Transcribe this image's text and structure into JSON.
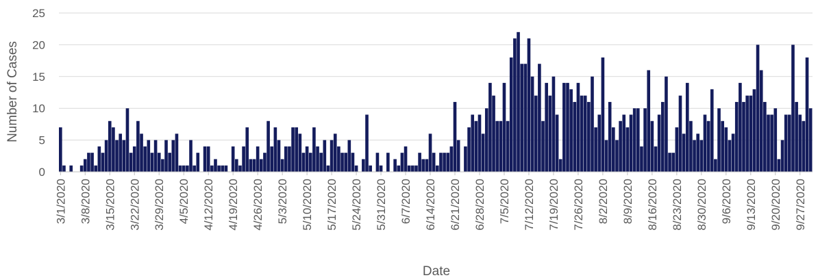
{
  "chart_data": {
    "type": "bar",
    "title": "",
    "xlabel": "Date",
    "ylabel": "Number of Cases",
    "ylim": [
      0,
      25
    ],
    "yticks": [
      0,
      5,
      10,
      15,
      20,
      25
    ],
    "grid": "horizontal",
    "legend": "none",
    "bar_color": "#141c5c",
    "start_date": "3/1/2020",
    "x_tick_labels": [
      "3/1/2020",
      "3/8/2020",
      "3/15/2020",
      "3/22/2020",
      "3/29/2020",
      "4/5/2020",
      "4/12/2020",
      "4/19/2020",
      "4/26/2020",
      "5/3/2020",
      "5/10/2020",
      "5/17/2020",
      "5/24/2020",
      "5/31/2020",
      "6/7/2020",
      "6/14/2020",
      "6/21/2020",
      "6/28/2020",
      "7/5/2020",
      "7/12/2020",
      "7/19/2020",
      "7/26/2020",
      "8/2/2020",
      "8/9/2020",
      "8/16/2020",
      "8/23/2020",
      "8/30/2020",
      "9/6/2020",
      "9/13/2020",
      "9/20/2020",
      "9/27/2020"
    ],
    "values": [
      7,
      1,
      0,
      1,
      0,
      0,
      1,
      2,
      3,
      3,
      1,
      4,
      3,
      5,
      8,
      7,
      5,
      6,
      5,
      10,
      3,
      4,
      8,
      6,
      4,
      5,
      3,
      5,
      3,
      2,
      5,
      3,
      5,
      6,
      1,
      1,
      1,
      5,
      1,
      3,
      0,
      4,
      4,
      1,
      2,
      1,
      1,
      1,
      0,
      4,
      2,
      1,
      4,
      7,
      2,
      2,
      4,
      2,
      3,
      8,
      4,
      7,
      5,
      2,
      4,
      4,
      7,
      7,
      6,
      3,
      4,
      3,
      7,
      4,
      3,
      5,
      1,
      5,
      6,
      4,
      3,
      3,
      5,
      3,
      1,
      0,
      2,
      9,
      1,
      0,
      3,
      1,
      0,
      3,
      0,
      2,
      1,
      3,
      4,
      1,
      1,
      1,
      3,
      2,
      2,
      6,
      3,
      1,
      3,
      3,
      3,
      4,
      11,
      5,
      0,
      4,
      7,
      9,
      8,
      9,
      6,
      10,
      14,
      12,
      8,
      8,
      14,
      8,
      18,
      21,
      22,
      17,
      17,
      21,
      15,
      12,
      17,
      8,
      14,
      12,
      15,
      9,
      2,
      14,
      14,
      13,
      11,
      14,
      12,
      12,
      11,
      15,
      7,
      9,
      18,
      5,
      11,
      7,
      5,
      8,
      9,
      7,
      9,
      10,
      10,
      4,
      10,
      16,
      8,
      4,
      9,
      11,
      15,
      3,
      3,
      7,
      12,
      6,
      14,
      8,
      5,
      6,
      5,
      9,
      8,
      13,
      2,
      10,
      8,
      7,
      5,
      6,
      11,
      14,
      11,
      12,
      12,
      13,
      20,
      16,
      11,
      9,
      9,
      10,
      2,
      5,
      9,
      9,
      20,
      11,
      9,
      8,
      18,
      10
    ]
  }
}
